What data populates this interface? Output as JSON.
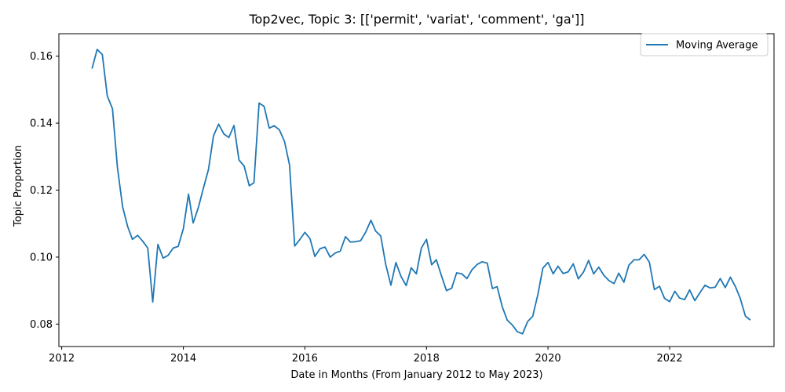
{
  "chart_data": {
    "type": "line",
    "title": "Top2vec, Topic 3: [['permit', 'variat', 'comment', 'ga']]",
    "xlabel": "Date in Months (From January 2012 to May 2023)",
    "ylabel": "Topic Proportion",
    "xlim": [
      "2011-12-15",
      "2023-09-20"
    ],
    "ylim": [
      0.0733,
      0.1667
    ],
    "x_ticks": [
      "2012",
      "2014",
      "2016",
      "2018",
      "2020",
      "2022"
    ],
    "y_ticks": [
      "0.08",
      "0.10",
      "0.12",
      "0.14",
      "0.16"
    ],
    "legend": {
      "position": "top-right"
    },
    "grid": false,
    "colors": {
      "line": "#1f77b4",
      "axis": "#000000",
      "legend_border": "#cccccc"
    },
    "series": [
      {
        "name": "Moving Average",
        "x": [
          "2012-07",
          "2012-08",
          "2012-09",
          "2012-10",
          "2012-11",
          "2012-12",
          "2013-01",
          "2013-02",
          "2013-03",
          "2013-04",
          "2013-05",
          "2013-06",
          "2013-07",
          "2013-08",
          "2013-09",
          "2013-10",
          "2013-11",
          "2013-12",
          "2014-01",
          "2014-02",
          "2014-03",
          "2014-04",
          "2014-05",
          "2014-06",
          "2014-07",
          "2014-08",
          "2014-09",
          "2014-10",
          "2014-11",
          "2014-12",
          "2015-01",
          "2015-02",
          "2015-03",
          "2015-04",
          "2015-05",
          "2015-06",
          "2015-07",
          "2015-08",
          "2015-09",
          "2015-10",
          "2015-11",
          "2015-12",
          "2016-01",
          "2016-02",
          "2016-03",
          "2016-04",
          "2016-05",
          "2016-06",
          "2016-07",
          "2016-08",
          "2016-09",
          "2016-10",
          "2016-11",
          "2016-12",
          "2017-01",
          "2017-02",
          "2017-03",
          "2017-04",
          "2017-05",
          "2017-06",
          "2017-07",
          "2017-08",
          "2017-09",
          "2017-10",
          "2017-11",
          "2017-12",
          "2018-01",
          "2018-02",
          "2018-03",
          "2018-04",
          "2018-05",
          "2018-06",
          "2018-07",
          "2018-08",
          "2018-09",
          "2018-10",
          "2018-11",
          "2018-12",
          "2019-01",
          "2019-02",
          "2019-03",
          "2019-04",
          "2019-05",
          "2019-06",
          "2019-07",
          "2019-08",
          "2019-09",
          "2019-10",
          "2019-11",
          "2019-12",
          "2020-01",
          "2020-02",
          "2020-03",
          "2020-04",
          "2020-05",
          "2020-06",
          "2020-07",
          "2020-08",
          "2020-09",
          "2020-10",
          "2020-11",
          "2020-12",
          "2021-01",
          "2021-02",
          "2021-03",
          "2021-04",
          "2021-05",
          "2021-06",
          "2021-07",
          "2021-08",
          "2021-09",
          "2021-10",
          "2021-11",
          "2021-12",
          "2022-01",
          "2022-02",
          "2022-03",
          "2022-04",
          "2022-05",
          "2022-06",
          "2022-07",
          "2022-08",
          "2022-09",
          "2022-10",
          "2022-11",
          "2022-12",
          "2023-01",
          "2023-02",
          "2023-03",
          "2023-04",
          "2023-05"
        ],
        "values": [
          0.1563,
          0.162,
          0.1605,
          0.1481,
          0.1443,
          0.1267,
          0.115,
          0.109,
          0.1053,
          0.1065,
          0.1048,
          0.1027,
          0.0866,
          0.1038,
          0.0997,
          0.1005,
          0.1027,
          0.1032,
          0.1085,
          0.1188,
          0.1102,
          0.1148,
          0.1205,
          0.1262,
          0.1362,
          0.1397,
          0.1368,
          0.1357,
          0.1393,
          0.129,
          0.1272,
          0.1213,
          0.1222,
          0.146,
          0.145,
          0.1385,
          0.1392,
          0.138,
          0.1345,
          0.1275,
          0.1033,
          0.1052,
          0.1074,
          0.1055,
          0.1002,
          0.1025,
          0.103,
          0.1,
          0.1012,
          0.1018,
          0.1061,
          0.1045,
          0.1046,
          0.1049,
          0.1075,
          0.111,
          0.1078,
          0.1063,
          0.0978,
          0.0916,
          0.0984,
          0.0942,
          0.0915,
          0.0968,
          0.095,
          0.1027,
          0.1053,
          0.0977,
          0.0992,
          0.0944,
          0.09,
          0.0907,
          0.0953,
          0.095,
          0.0936,
          0.0962,
          0.0978,
          0.0986,
          0.0982,
          0.0906,
          0.0912,
          0.0852,
          0.0812,
          0.0797,
          0.0777,
          0.0771,
          0.0808,
          0.0823,
          0.0888,
          0.0967,
          0.0984,
          0.095,
          0.0973,
          0.0951,
          0.0956,
          0.098,
          0.0935,
          0.0955,
          0.099,
          0.095,
          0.097,
          0.0946,
          0.093,
          0.0921,
          0.0952,
          0.0925,
          0.0976,
          0.0992,
          0.0992,
          0.1008,
          0.0985,
          0.0903,
          0.0913,
          0.0877,
          0.0867,
          0.0898,
          0.0878,
          0.0873,
          0.0902,
          0.087,
          0.0893,
          0.0916,
          0.0908,
          0.091,
          0.0936,
          0.0909,
          0.094,
          0.0911,
          0.0877,
          0.0824,
          0.0812
        ]
      }
    ]
  }
}
